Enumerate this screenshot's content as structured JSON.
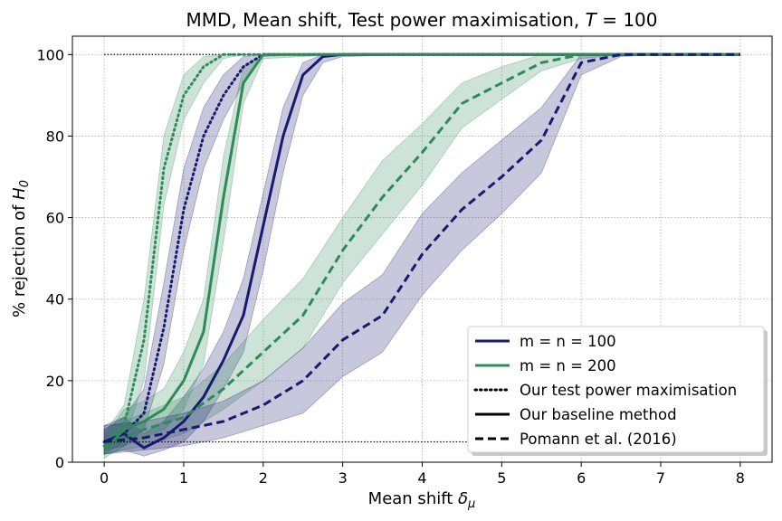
{
  "chart_data": {
    "type": "line",
    "title": "MMD, Mean shift, Test power maximisation, ",
    "title_var": "T",
    "title_suffix": " = 100",
    "xlabel": "Mean shift ",
    "xlabel_var": "δ",
    "xlabel_sub": "μ",
    "ylabel": "% rejection of ",
    "ylabel_var": "H",
    "ylabel_sub": "0",
    "xlim": [
      -0.4,
      8.4
    ],
    "ylim": [
      0,
      104.5
    ],
    "xticks": [
      0,
      1,
      2,
      3,
      4,
      5,
      6,
      7,
      8
    ],
    "yticks": [
      0,
      20,
      40,
      60,
      80,
      100
    ],
    "grid": true,
    "legend_position": "bottom-right",
    "colors": {
      "m100": "#191970",
      "m200": "#2e8b57"
    },
    "reference_lines": [
      {
        "y": 100,
        "x": [
          0,
          2
        ]
      },
      {
        "y": 5,
        "x": [
          0,
          5
        ]
      }
    ],
    "series": [
      {
        "size": "m100",
        "method": "ours_power",
        "dash": "dotted",
        "x": [
          0,
          0.25,
          0.5,
          0.75,
          1,
          1.25,
          1.5,
          1.75,
          2,
          2.5,
          3,
          4,
          5,
          6,
          7,
          8
        ],
        "y": [
          5,
          7,
          12,
          33,
          62,
          80,
          90,
          97,
          100,
          100,
          100,
          100,
          100,
          100,
          100,
          100
        ],
        "lower": [
          3,
          4,
          8,
          24,
          52,
          72,
          84,
          93,
          99.5,
          100,
          100,
          100,
          100,
          100,
          100,
          100
        ],
        "upper": [
          8,
          11,
          18,
          44,
          72,
          87,
          95,
          99.5,
          100,
          100,
          100,
          100,
          100,
          100,
          100,
          100
        ]
      },
      {
        "size": "m200",
        "method": "ours_power",
        "dash": "dotted",
        "x": [
          0,
          0.25,
          0.5,
          0.75,
          1,
          1.25,
          1.5,
          1.75,
          2,
          3,
          4,
          5,
          6,
          7,
          8
        ],
        "y": [
          4,
          9,
          30,
          72,
          90,
          97,
          100,
          100,
          100,
          100,
          100,
          100,
          100,
          100,
          100
        ],
        "lower": [
          2,
          5,
          20,
          63,
          84,
          93,
          99,
          100,
          100,
          100,
          100,
          100,
          100,
          100,
          100
        ],
        "upper": [
          7,
          14,
          40,
          80,
          95,
          99.5,
          100,
          100,
          100,
          100,
          100,
          100,
          100,
          100,
          100
        ]
      },
      {
        "size": "m100",
        "method": "ours_baseline",
        "dash": "solid",
        "x": [
          0,
          0.25,
          0.5,
          0.75,
          1,
          1.25,
          1.5,
          1.75,
          2,
          2.25,
          2.5,
          2.75,
          3,
          4,
          5,
          6,
          7,
          8
        ],
        "y": [
          5,
          7,
          3.5,
          6,
          10,
          16,
          25,
          36,
          58,
          80,
          95,
          99.5,
          100,
          100,
          100,
          100,
          100,
          100
        ],
        "lower": [
          2,
          3,
          1.5,
          3,
          5,
          10,
          18,
          27,
          47,
          71,
          90,
          98,
          99.5,
          100,
          100,
          100,
          100,
          100
        ],
        "upper": [
          9,
          11,
          7,
          10,
          16,
          23,
          32,
          45,
          66,
          87,
          98,
          100,
          100,
          100,
          100,
          100,
          100,
          100
        ]
      },
      {
        "size": "m200",
        "method": "ours_baseline",
        "dash": "solid",
        "x": [
          0,
          0.25,
          0.5,
          0.75,
          1,
          1.25,
          1.5,
          1.75,
          2,
          3,
          4,
          5,
          6,
          7,
          8
        ],
        "y": [
          3,
          8,
          10,
          13,
          20,
          32,
          65,
          93,
          100,
          100,
          100,
          100,
          100,
          100,
          100
        ],
        "lower": [
          1,
          4,
          6,
          8,
          13,
          24,
          54,
          88,
          99,
          100,
          100,
          100,
          100,
          100,
          100
        ],
        "upper": [
          6,
          13,
          15,
          18,
          27,
          40,
          75,
          97,
          100,
          100,
          100,
          100,
          100,
          100,
          100
        ]
      },
      {
        "size": "m200",
        "method": "pomann",
        "dash": "dashed",
        "x": [
          0,
          0.5,
          1,
          1.5,
          2,
          2.5,
          3,
          3.5,
          4,
          4.5,
          5,
          5.5,
          6,
          6.5,
          7,
          8
        ],
        "y": [
          4,
          8,
          11,
          18,
          27,
          36,
          52,
          65,
          76,
          88,
          93,
          98,
          100,
          100,
          100,
          100
        ],
        "lower": [
          2,
          4,
          7,
          13,
          20,
          28,
          44,
          56,
          68,
          82,
          89,
          96,
          99,
          100,
          100,
          100
        ],
        "upper": [
          8,
          12,
          16,
          24,
          35,
          45,
          60,
          74,
          83,
          93,
          97,
          100,
          100,
          100,
          100,
          100
        ]
      },
      {
        "size": "m100",
        "method": "pomann",
        "dash": "dashed",
        "x": [
          0,
          0.5,
          1,
          1.5,
          2,
          2.5,
          3,
          3.5,
          4,
          4.5,
          5,
          5.5,
          6,
          6.5,
          7,
          8
        ],
        "y": [
          5,
          6,
          8,
          10,
          14,
          20,
          30,
          36,
          51,
          62,
          70,
          79,
          98,
          100,
          100,
          100
        ],
        "lower": [
          2,
          3,
          4,
          6,
          9,
          12,
          21,
          27,
          41,
          52,
          61,
          71,
          95,
          99.5,
          100,
          100
        ],
        "upper": [
          9,
          10,
          12,
          15,
          20,
          28,
          39,
          46,
          61,
          71,
          79,
          87,
          100,
          100,
          100,
          100
        ]
      }
    ],
    "legend": [
      {
        "label": "m = n = 100",
        "color_key": "m100",
        "dash": "solid"
      },
      {
        "label": "m = n = 200",
        "color_key": "m200",
        "dash": "solid"
      },
      {
        "label": "Our test power maximisation",
        "color": "#000000",
        "dash": "dotted"
      },
      {
        "label": "Our baseline method",
        "color": "#000000",
        "dash": "solid"
      },
      {
        "label": "Pomann et al. (2016)",
        "color": "#000000",
        "dash": "dashed"
      }
    ]
  }
}
